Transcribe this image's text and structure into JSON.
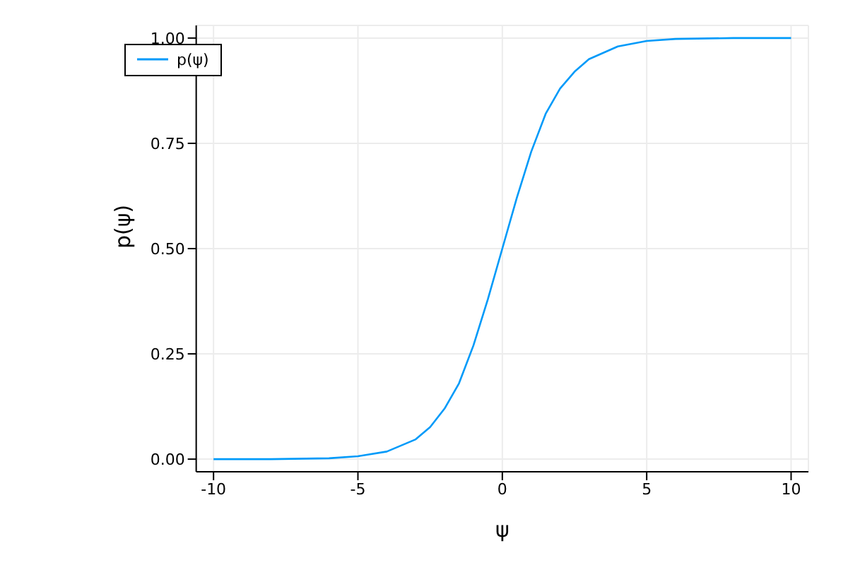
{
  "chart_data": {
    "type": "line",
    "xlabel": "ψ",
    "ylabel": "p(ψ)",
    "x": [
      -10,
      -8,
      -6,
      -5,
      -4,
      -3,
      -2.5,
      -2,
      -1.5,
      -1,
      -0.5,
      0,
      0.5,
      1,
      1.5,
      2,
      2.5,
      3,
      4,
      5,
      6,
      8,
      10
    ],
    "series": [
      {
        "name": "p(ψ)",
        "color": "#009af9",
        "values": [
          0,
          0,
          0.002,
          0.007,
          0.018,
          0.047,
          0.076,
          0.12,
          0.18,
          0.27,
          0.38,
          0.5,
          0.62,
          0.73,
          0.82,
          0.88,
          0.92,
          0.95,
          0.98,
          0.993,
          0.998,
          1,
          1
        ]
      }
    ],
    "xlim": [
      -10.6,
      10.6
    ],
    "xticks": [
      -10,
      -5,
      0,
      5,
      10
    ],
    "ylim": [
      -0.03,
      1.03
    ],
    "yticks": [
      {
        "value": 0,
        "label": "0.00"
      },
      {
        "value": 0.25,
        "label": "0.25"
      },
      {
        "value": 0.5,
        "label": "0.50"
      },
      {
        "value": 0.75,
        "label": "0.75"
      },
      {
        "value": 1,
        "label": "1.00"
      }
    ],
    "grid": true,
    "legend": "top left",
    "marker": "none",
    "line_style": "solid"
  }
}
